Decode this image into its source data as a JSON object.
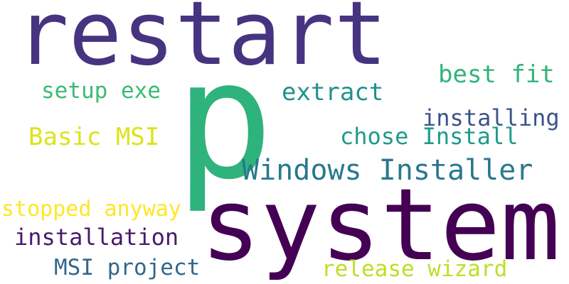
{
  "words": {
    "restart": {
      "text": "restart",
      "color": "#463480"
    },
    "p": {
      "text": "p",
      "color": "#2eb37c"
    },
    "system": {
      "text": "system",
      "color": "#440154"
    },
    "best_fit": {
      "text": "best fit",
      "color": "#2fb47c"
    },
    "setup_exe": {
      "text": "setup exe",
      "color": "#3cbb75"
    },
    "extract": {
      "text": "extract",
      "color": "#21918c"
    },
    "installing": {
      "text": "installing",
      "color": "#3b528b"
    },
    "basic_msi": {
      "text": "Basic MSI",
      "color": "#dde318"
    },
    "chose_install": {
      "text": "chose Install",
      "color": "#1f9a8a"
    },
    "windows_installer": {
      "text": "Windows Installer",
      "color": "#2a788e"
    },
    "stopped_anyway": {
      "text": "stopped anyway",
      "color": "#fde725"
    },
    "installation": {
      "text": "installation",
      "color": "#481a6c"
    },
    "msi_project": {
      "text": "MSI project",
      "color": "#31688e"
    },
    "release_wizard": {
      "text": "release wizard",
      "color": "#bddf26"
    }
  }
}
